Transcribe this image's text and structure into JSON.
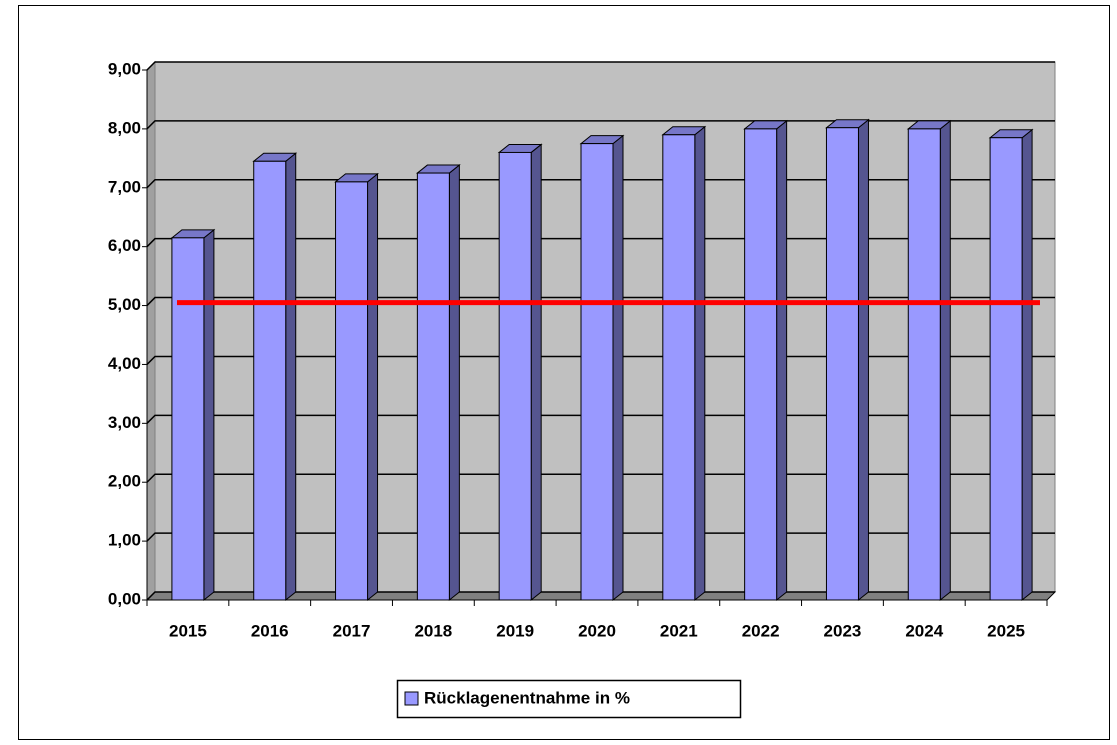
{
  "chart_data": {
    "type": "bar3d",
    "categories": [
      "2015",
      "2016",
      "2017",
      "2018",
      "2019",
      "2020",
      "2021",
      "2022",
      "2023",
      "2024",
      "2025"
    ],
    "series": [
      {
        "name": "Rücklagenentnahme in %",
        "color": "#9999ff",
        "values": [
          6.15,
          7.45,
          7.1,
          7.25,
          7.6,
          7.75,
          7.9,
          8.0,
          8.02,
          8.0,
          7.85
        ]
      }
    ],
    "reference_line": {
      "value": 5.05,
      "color": "#ff0000"
    },
    "ylim": [
      0,
      9
    ],
    "yticks": [
      {
        "value": 0,
        "label": "0,00"
      },
      {
        "value": 1,
        "label": "1,00"
      },
      {
        "value": 2,
        "label": "2,00"
      },
      {
        "value": 3,
        "label": "3,00"
      },
      {
        "value": 4,
        "label": "4,00"
      },
      {
        "value": 5,
        "label": "5,00"
      },
      {
        "value": 6,
        "label": "6,00"
      },
      {
        "value": 7,
        "label": "7,00"
      },
      {
        "value": 8,
        "label": "8,00"
      },
      {
        "value": 9,
        "label": "9,00"
      }
    ],
    "grid": true,
    "legend": "bottom"
  }
}
